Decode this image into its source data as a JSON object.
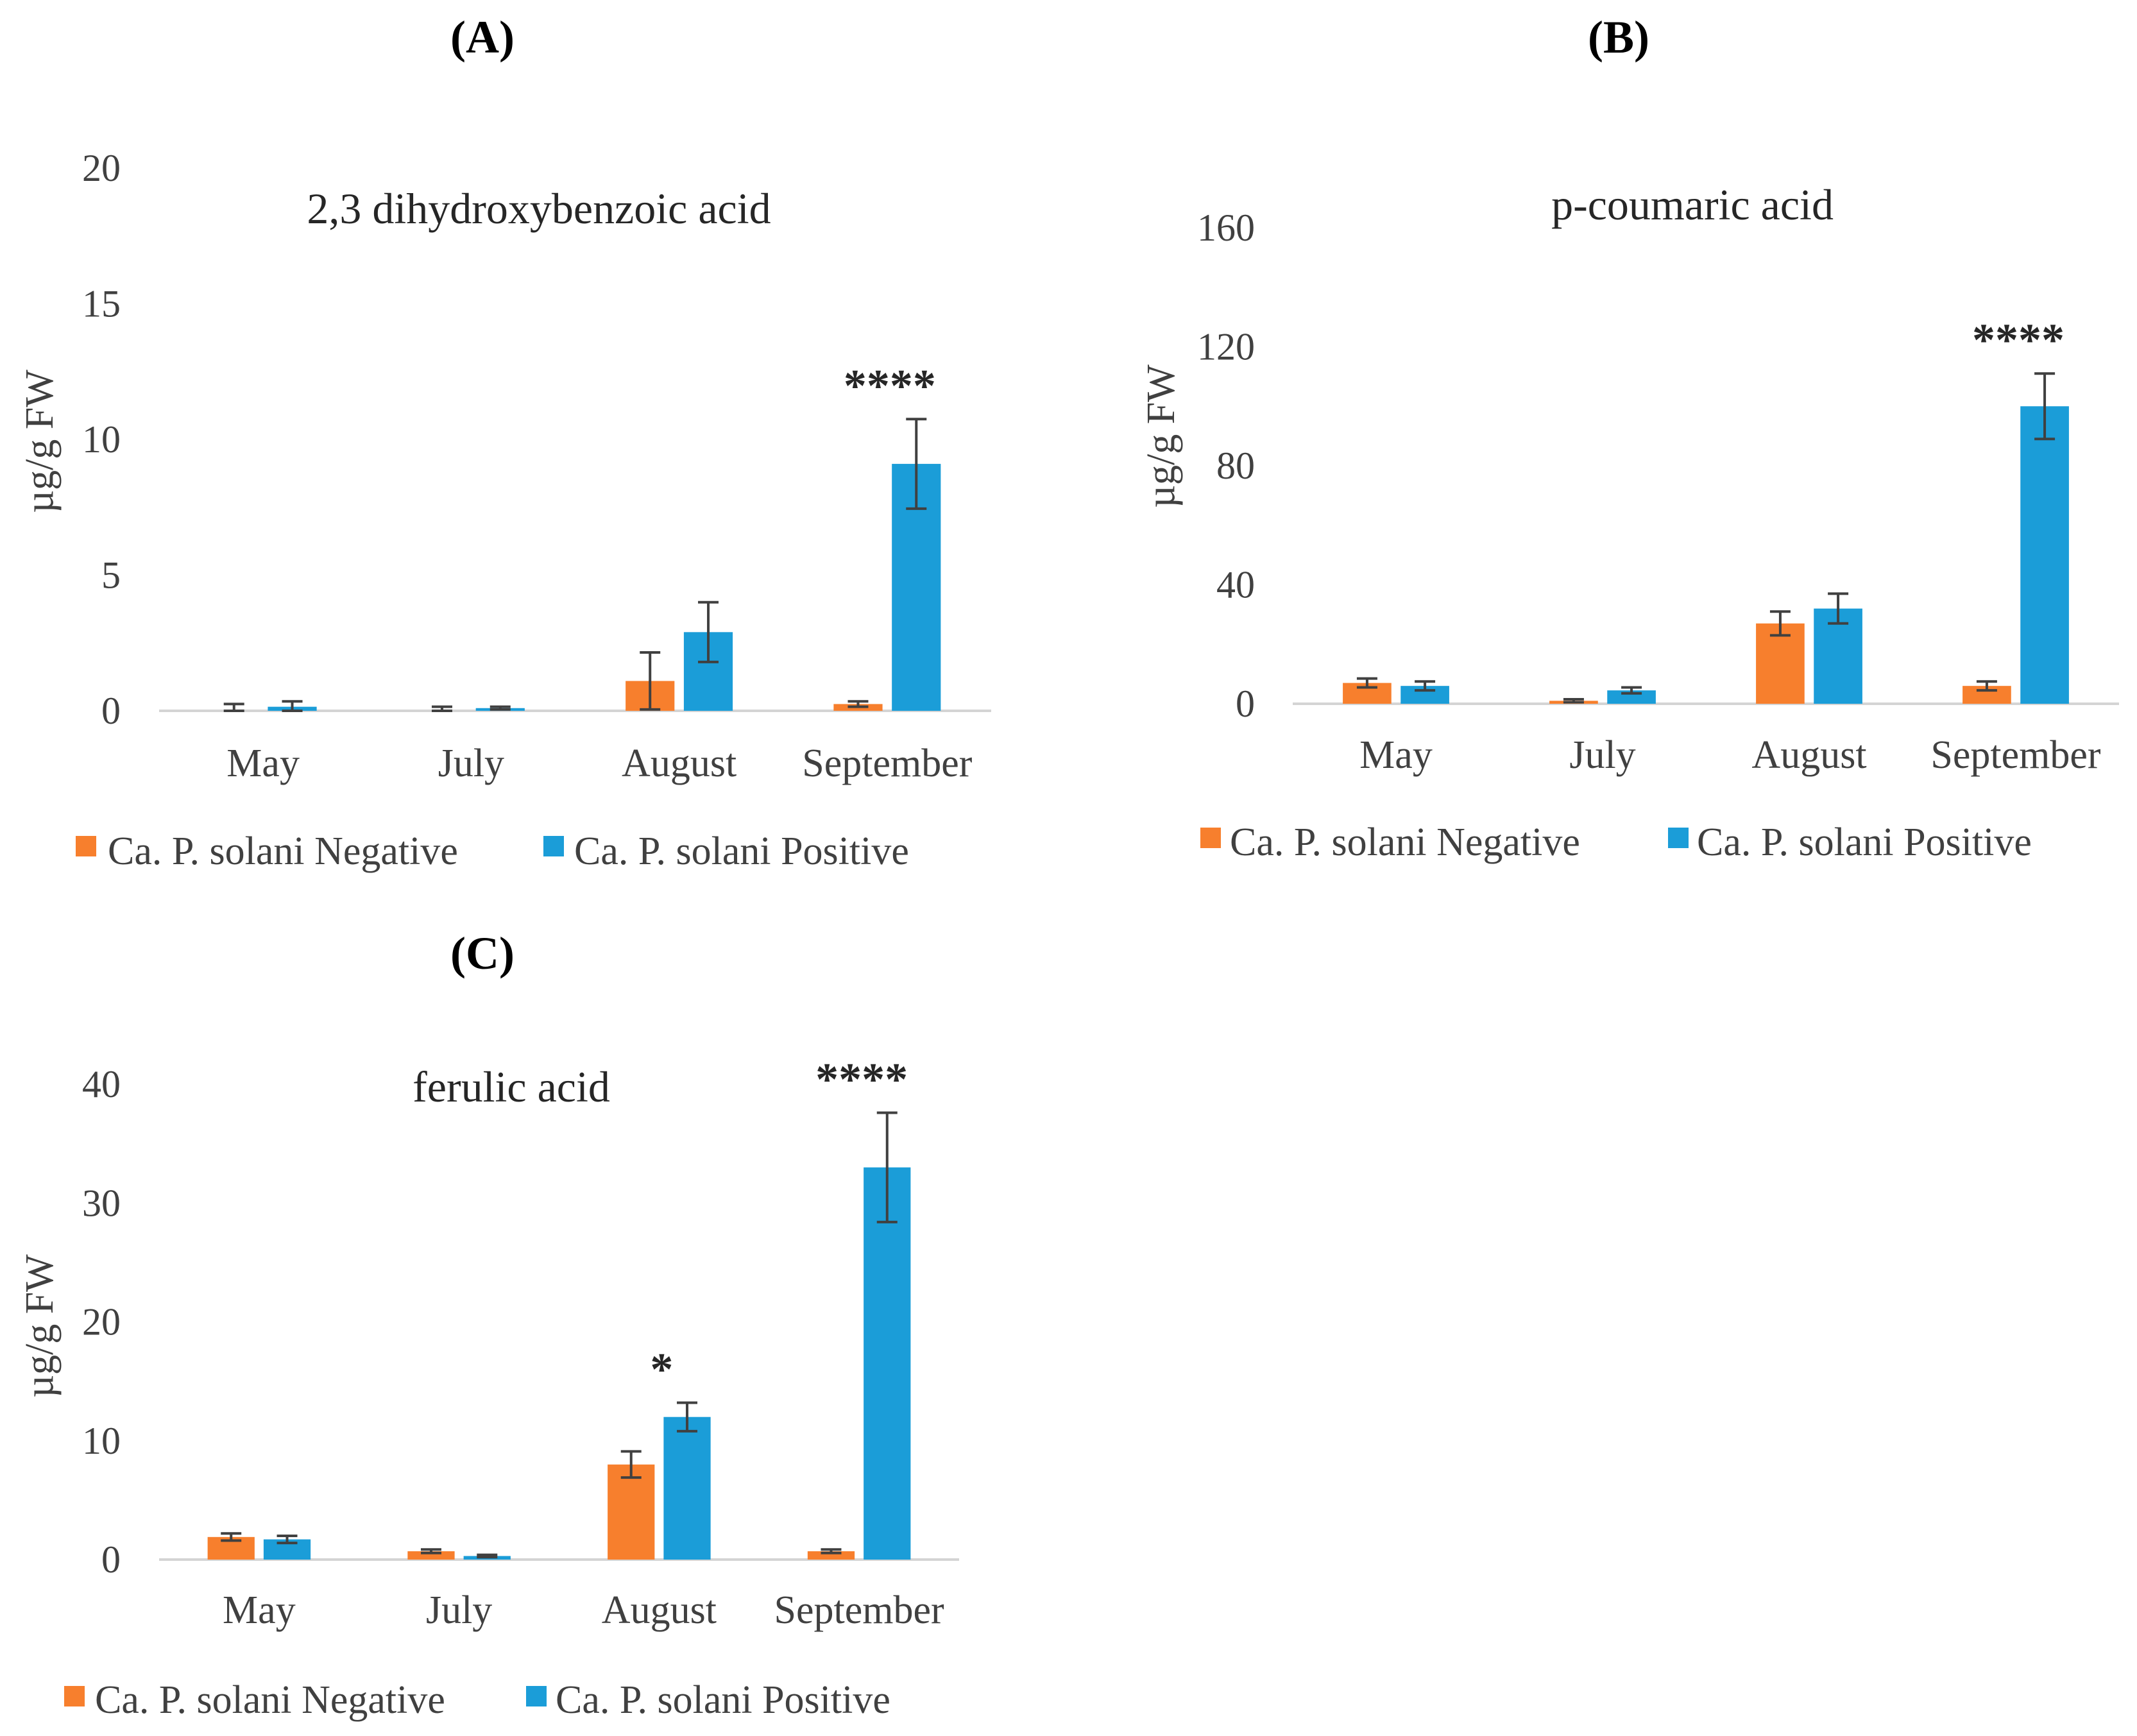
{
  "chart_data": [
    {
      "panel": "(A)",
      "type": "bar",
      "title": "2,3 dihydroxybenzoic acid",
      "xlabel": "",
      "ylabel": "µg/g FW",
      "ylim": [
        0,
        20
      ],
      "yticks": [
        0,
        5,
        10,
        15,
        20
      ],
      "categories": [
        "May",
        "July",
        "August",
        "September"
      ],
      "series": [
        {
          "name": "Ca. P. solani Negative",
          "color": "#F77F2D",
          "values": [
            0.0,
            0.0,
            1.1,
            0.25
          ],
          "errors": [
            0.25,
            0.15,
            1.05,
            0.1
          ]
        },
        {
          "name": "Ca. P. solani Positive",
          "color": "#1B9DD8",
          "values": [
            0.15,
            0.1,
            2.9,
            9.1
          ],
          "errors": [
            0.2,
            0.05,
            1.1,
            1.65
          ]
        }
      ],
      "annotations": [
        {
          "category": "September",
          "text": "****"
        }
      ],
      "legend": "bottom"
    },
    {
      "panel": "(B)",
      "type": "bar",
      "title": "p-coumaric acid",
      "xlabel": "",
      "ylabel": "µg/g FW",
      "ylim": [
        0,
        160
      ],
      "yticks": [
        0,
        40,
        80,
        120,
        160
      ],
      "categories": [
        "May",
        "July",
        "August",
        "September"
      ],
      "series": [
        {
          "name": "Ca. P. solani Negative",
          "color": "#F77F2D",
          "values": [
            7,
            1,
            27,
            6
          ],
          "errors": [
            1.5,
            0.5,
            4,
            1.5
          ]
        },
        {
          "name": "Ca. P. solani Positive",
          "color": "#1B9DD8",
          "values": [
            6,
            4.5,
            32,
            100
          ],
          "errors": [
            1.5,
            1,
            5,
            11
          ]
        }
      ],
      "annotations": [
        {
          "category": "September",
          "text": "****"
        }
      ],
      "legend": "bottom"
    },
    {
      "panel": "(C)",
      "type": "bar",
      "title": "ferulic acid",
      "xlabel": "",
      "ylabel": "µg/g FW",
      "ylim": [
        0,
        40
      ],
      "yticks": [
        0,
        10,
        20,
        30,
        40
      ],
      "categories": [
        "May",
        "July",
        "August",
        "September"
      ],
      "series": [
        {
          "name": "Ca. P. solani Negative",
          "color": "#F77F2D",
          "values": [
            1.9,
            0.7,
            8.0,
            0.7
          ],
          "errors": [
            0.3,
            0.15,
            1.1,
            0.15
          ]
        },
        {
          "name": "Ca. P. solani Positive",
          "color": "#1B9DD8",
          "values": [
            1.7,
            0.3,
            12.0,
            33.0
          ],
          "errors": [
            0.3,
            0.1,
            1.2,
            4.6
          ]
        }
      ],
      "annotations": [
        {
          "category": "August",
          "text": "*"
        },
        {
          "category": "September",
          "text": "****"
        }
      ],
      "legend": "bottom"
    }
  ]
}
